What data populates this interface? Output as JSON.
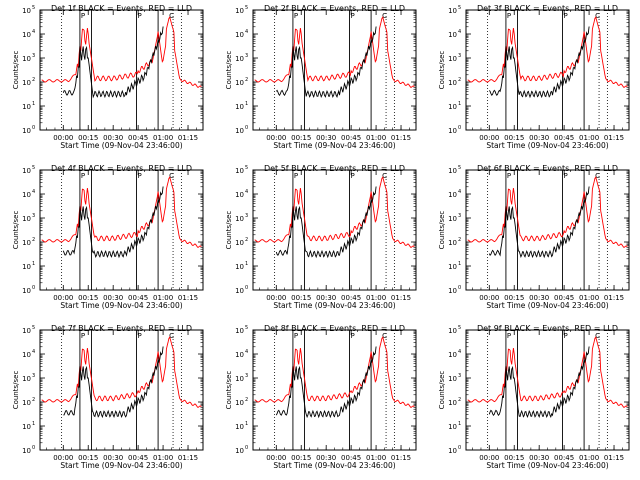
{
  "page_title_pattern": "Det {n}f BLACK = Events, RED = LLD",
  "chart_data": [
    {
      "panel": "1f",
      "title": "Det 1f BLACK = Events, RED = LLD",
      "type": "line"
    },
    {
      "panel": "2f",
      "title": "Det 2f BLACK = Events, RED = LLD",
      "type": "line"
    },
    {
      "panel": "3f",
      "title": "Det 3f BLACK = Events, RED = LLD",
      "type": "line"
    },
    {
      "panel": "4f",
      "title": "Det 4f BLACK = Events, RED = LLD",
      "type": "line"
    },
    {
      "panel": "5f",
      "title": "Det 5f BLACK = Events, RED = LLD",
      "type": "line"
    },
    {
      "panel": "6f",
      "title": "Det 6f BLACK = Events, RED = LLD",
      "type": "line"
    },
    {
      "panel": "7f",
      "title": "Det 7f BLACK = Events, RED = LLD",
      "type": "line"
    },
    {
      "panel": "8f",
      "title": "Det 8f BLACK = Events, RED = LLD",
      "type": "line"
    },
    {
      "panel": "9f",
      "title": "Det 9f BLACK = Events, RED = LLD",
      "type": "line"
    }
  ],
  "common": {
    "ylabel": "Counts/sec",
    "xlabel": "Start Time (09-Nov-04 23:46:00)",
    "x_ticks": [
      "00:00",
      "00:15",
      "00:30",
      "00:45",
      "01:00",
      "01:15"
    ],
    "x_tick_minutes": [
      0,
      15,
      30,
      45,
      60,
      75
    ],
    "xlim_minutes": [
      -14,
      84
    ],
    "y_ticks": [
      "10",
      "10",
      "10",
      "10",
      "10",
      "10"
    ],
    "y_exponents": [
      "0",
      "1",
      "2",
      "3",
      "4",
      "5"
    ],
    "ylim_log10": [
      0,
      5
    ],
    "yscale": "log",
    "dotted_lines_minutes": [
      -1,
      66,
      71
    ],
    "solid_lines_minutes": [
      10,
      17,
      44,
      57
    ],
    "markers": [
      {
        "label": "P",
        "minute": 10
      },
      {
        "label": "P",
        "minute": 44
      },
      {
        "label": "C",
        "minute": 63
      }
    ],
    "series": [
      {
        "name": "Events",
        "color": "#000000"
      },
      {
        "name": "LLD",
        "color": "#ff0000"
      }
    ]
  }
}
